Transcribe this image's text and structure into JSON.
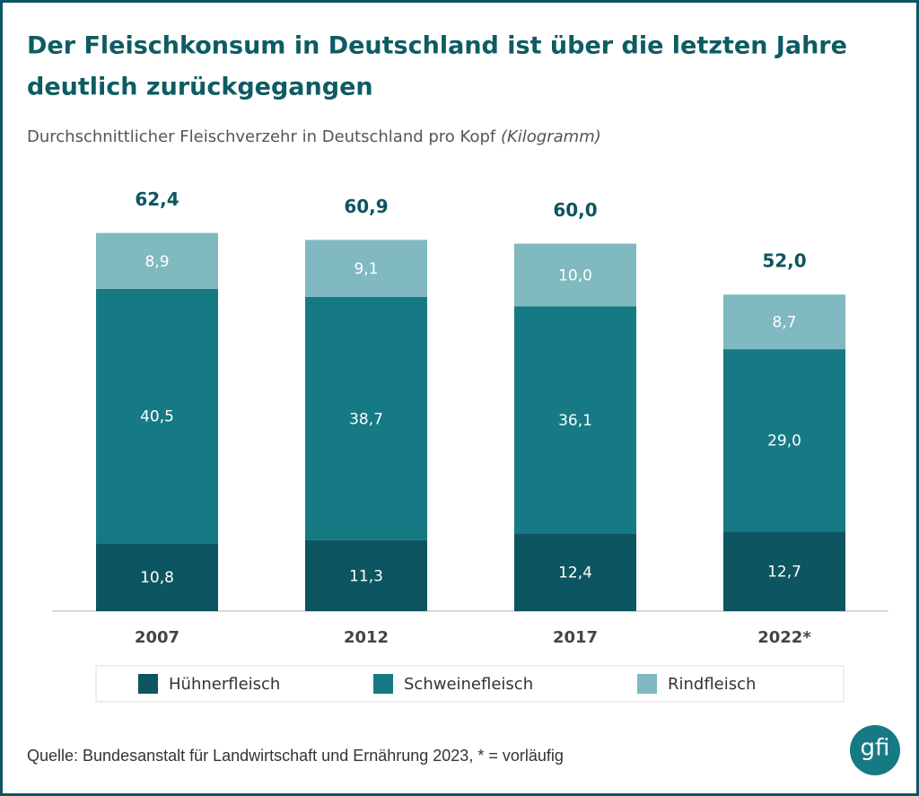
{
  "chart_data": {
    "type": "stacked-bar",
    "title": "Der Fleischkonsum in Deutschland ist über die letzten Jahre deutlich zurückgegangen",
    "subtitle": "Durchschnittlicher Fleischverzehr in Deutschland pro Kopf",
    "unit": "(Kilogramm)",
    "categories": [
      "2007",
      "2012",
      "2017",
      "2022*"
    ],
    "series": [
      {
        "name": "Hühnerfleisch",
        "color": "#0d5560",
        "values": [
          10.8,
          11.3,
          12.4,
          12.7
        ],
        "value_labels": [
          "10,8",
          "11,3",
          "12,4",
          "12,7"
        ]
      },
      {
        "name": "Schweinefleisch",
        "color": "#167a85",
        "values": [
          40.5,
          38.7,
          36.1,
          29.0
        ],
        "value_labels": [
          "40,5",
          "38,7",
          "36,1",
          "29,0"
        ]
      },
      {
        "name": "Rindfleisch",
        "color": "#80b9c0",
        "values": [
          8.9,
          9.1,
          10.0,
          8.7
        ],
        "value_labels": [
          "8,9",
          "9,1",
          "10,0",
          "8,7"
        ]
      }
    ],
    "totals": {
      "values": [
        62.4,
        60.9,
        60.0,
        52.0
      ],
      "value_labels": [
        "62,4",
        "60,9",
        "60,0",
        "52,0"
      ]
    },
    "source": "Quelle: Bundesanstalt für Landwirtschaft und Ernährung 2023, * = vorläufig",
    "logo": "gfi"
  }
}
